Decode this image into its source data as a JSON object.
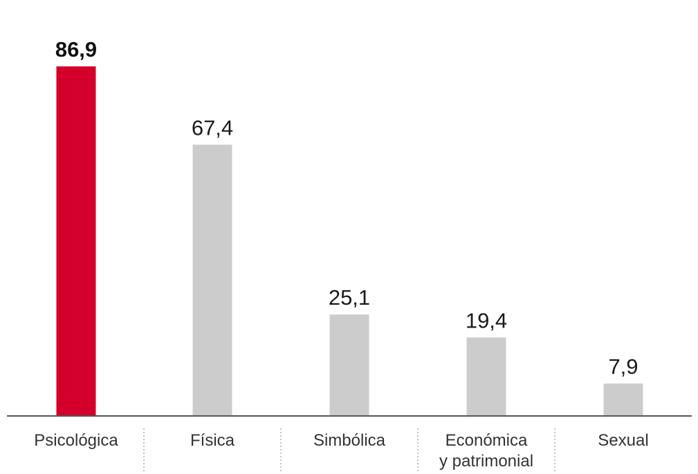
{
  "chart_data": {
    "type": "bar",
    "title": "",
    "xlabel": "",
    "ylabel": "",
    "categories": [
      [
        "Psicológica"
      ],
      [
        "Física"
      ],
      [
        "Simbólica"
      ],
      [
        "Económica",
        "y patrimonial"
      ],
      [
        "Sexual"
      ]
    ],
    "values": [
      86.9,
      67.4,
      25.1,
      19.4,
      7.9
    ],
    "value_labels": [
      "86,9",
      "67,4",
      "25,1",
      "19,4",
      "7,9"
    ],
    "ylim": [
      0,
      100
    ],
    "grid": false,
    "legend": "none",
    "highlight_index": 0,
    "colors": {
      "highlight": "#d4002c",
      "default": "#cccccc",
      "axis": "#555555",
      "separator": "#999999"
    }
  }
}
